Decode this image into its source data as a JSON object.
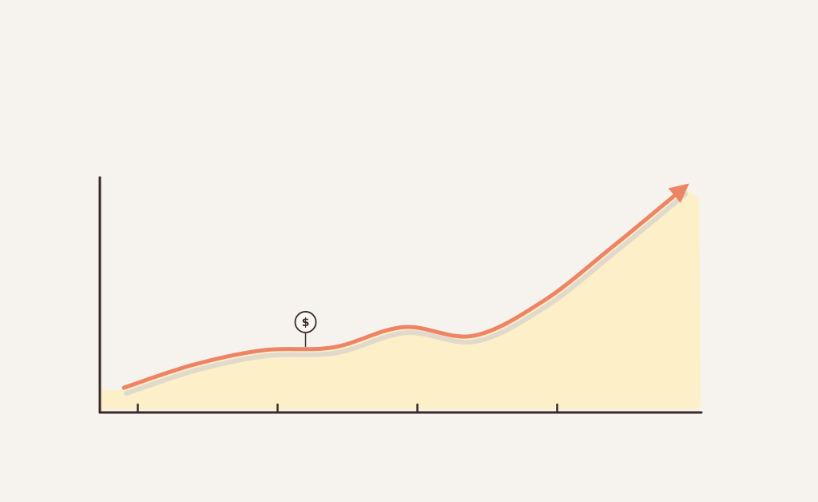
{
  "chart_data": {
    "type": "area",
    "title": "",
    "xlabel": "",
    "ylabel": "",
    "x": [
      0,
      1,
      2,
      3,
      4,
      5,
      6,
      7,
      8
    ],
    "series": [
      {
        "values": [
          8,
          16,
          21,
          22,
          29,
          26,
          38,
          57,
          77
        ]
      }
    ],
    "xlim": [
      0,
      8
    ],
    "ylim": [
      -5,
      85
    ],
    "xticks": [
      0.2,
      2.2,
      4.2,
      6.2
    ],
    "grid": false,
    "legend": "none",
    "annotation": {
      "icon": "dollar-coin-icon",
      "text": "$",
      "at_x": 2.6
    },
    "trend_arrow": true,
    "colors": {
      "background": "#f6f3ee",
      "area_fill": "#fdefc8",
      "line": "#ee8466",
      "shadow": "#d9d4cd",
      "axis": "#3b2a26"
    }
  }
}
